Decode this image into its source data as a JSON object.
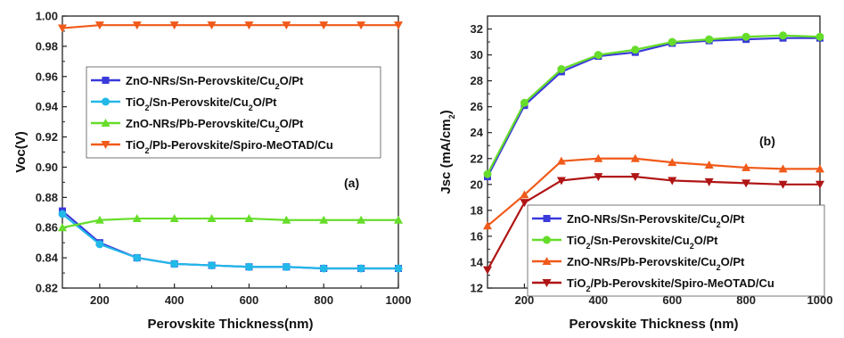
{
  "chart_data": [
    {
      "type": "line",
      "panel_label": "(a)",
      "xlabel": "Perovskite Thickness(nm)",
      "ylabel": "Voc(V)",
      "xlim": [
        100,
        1000
      ],
      "ylim": [
        0.82,
        1.0
      ],
      "xticks": [
        200,
        400,
        600,
        800,
        1000
      ],
      "yticks": [
        0.82,
        0.84,
        0.86,
        0.88,
        0.9,
        0.92,
        0.94,
        0.96,
        0.98,
        1.0
      ],
      "ytick_labels": [
        "0.82",
        "0.84",
        "0.86",
        "0.88",
        "0.90",
        "0.92",
        "0.94",
        "0.96",
        "0.98",
        "1.00"
      ],
      "x": [
        100,
        200,
        300,
        400,
        500,
        600,
        700,
        800,
        900,
        1000
      ],
      "legend_position": "upper-left",
      "series": [
        {
          "name_parts": [
            [
              "ZnO-NRs/Sn-Perovskite/Cu",
              false
            ],
            [
              "2",
              true
            ],
            [
              "O/Pt",
              false
            ]
          ],
          "color": "#3a3adb",
          "marker": "square",
          "values": [
            0.871,
            0.85,
            0.84,
            0.836,
            0.835,
            0.834,
            0.834,
            0.833,
            0.833,
            0.833
          ]
        },
        {
          "name_parts": [
            [
              "TiO",
              false
            ],
            [
              "2",
              true
            ],
            [
              "/Sn-Perovskite/Cu",
              false
            ],
            [
              "2",
              true
            ],
            [
              "O/Pt",
              false
            ]
          ],
          "color": "#22b8e8",
          "marker": "circle",
          "values": [
            0.869,
            0.849,
            0.84,
            0.836,
            0.835,
            0.834,
            0.834,
            0.833,
            0.833,
            0.833
          ]
        },
        {
          "name_parts": [
            [
              "ZnO-NRs/Pb-Perovskite/Cu",
              false
            ],
            [
              "2",
              true
            ],
            [
              "O/Pt",
              false
            ]
          ],
          "color": "#66dd2a",
          "marker": "triangle-up",
          "values": [
            0.86,
            0.865,
            0.866,
            0.866,
            0.866,
            0.866,
            0.865,
            0.865,
            0.865,
            0.865
          ]
        },
        {
          "name_parts": [
            [
              "TiO",
              false
            ],
            [
              "2",
              true
            ],
            [
              "/Pb-Perovskite/Spiro-MeOTAD/Cu",
              false
            ]
          ],
          "color": "#f05a1a",
          "marker": "triangle-down",
          "values": [
            0.992,
            0.994,
            0.994,
            0.994,
            0.994,
            0.994,
            0.994,
            0.994,
            0.994,
            0.994
          ]
        }
      ]
    },
    {
      "type": "line",
      "panel_label": "(b)",
      "xlabel": "Perovskite Thickness (nm)",
      "ylabel_parts": [
        [
          "Jsc (mA/cm",
          false
        ],
        [
          "2",
          true
        ],
        [
          ")",
          false
        ]
      ],
      "xlim": [
        100,
        1000
      ],
      "ylim": [
        12,
        33
      ],
      "xticks": [
        200,
        400,
        600,
        800,
        1000
      ],
      "yticks": [
        12,
        14,
        16,
        18,
        20,
        22,
        24,
        26,
        28,
        30,
        32
      ],
      "ytick_labels": [
        "12",
        "14",
        "16",
        "18",
        "20",
        "22",
        "24",
        "26",
        "28",
        "30",
        "32"
      ],
      "x": [
        100,
        200,
        300,
        400,
        500,
        600,
        700,
        800,
        900,
        1000
      ],
      "legend_position": "lower-right",
      "series": [
        {
          "name_parts": [
            [
              "ZnO-NRs/Sn-Perovskite/Cu",
              false
            ],
            [
              "2",
              true
            ],
            [
              "O/Pt",
              false
            ]
          ],
          "color": "#3a3adb",
          "marker": "square",
          "values": [
            20.6,
            26.1,
            28.7,
            29.9,
            30.2,
            30.9,
            31.1,
            31.2,
            31.3,
            31.3
          ]
        },
        {
          "name_parts": [
            [
              "TiO",
              false
            ],
            [
              "2",
              true
            ],
            [
              "/Sn-Perovskite/Cu",
              false
            ],
            [
              "2",
              true
            ],
            [
              "O/Pt",
              false
            ]
          ],
          "color": "#66dd2a",
          "marker": "circle",
          "values": [
            20.8,
            26.3,
            28.9,
            30.0,
            30.4,
            31.0,
            31.2,
            31.4,
            31.5,
            31.4
          ]
        },
        {
          "name_parts": [
            [
              "ZnO-NRs/Pb-Perovskite/Cu",
              false
            ],
            [
              "2",
              true
            ],
            [
              "O/Pt",
              false
            ]
          ],
          "color": "#f05a1a",
          "marker": "triangle-up",
          "values": [
            16.8,
            19.2,
            21.8,
            22.0,
            22.0,
            21.7,
            21.5,
            21.3,
            21.2,
            21.2
          ]
        },
        {
          "name_parts": [
            [
              "TiO",
              false
            ],
            [
              "2",
              true
            ],
            [
              "/Pb-Perovskite/Spiro-MeOTAD/Cu",
              false
            ]
          ],
          "color": "#b01515",
          "marker": "triangle-down",
          "values": [
            13.4,
            18.6,
            20.3,
            20.6,
            20.6,
            20.3,
            20.2,
            20.1,
            20.0,
            20.0
          ]
        }
      ]
    }
  ]
}
